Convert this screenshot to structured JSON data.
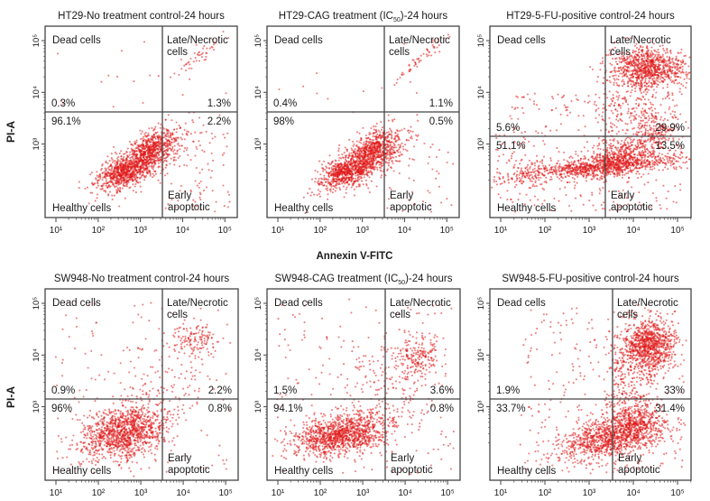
{
  "figure": {
    "y_axis_label": "PI-A",
    "x_axis_label": "Annexin V-FITC",
    "colors": {
      "dots": "#e01818",
      "axes": "#444444",
      "text": "#1a1a1a"
    }
  },
  "chart_data": [
    {
      "type": "scatter",
      "title_pre": "HT29-No treatment control-24 hours",
      "title_sub": "",
      "title_post": "",
      "x_ticks": [
        "10¹",
        "10²",
        "10³",
        "10⁴",
        "10⁵"
      ],
      "y_ticks": [
        "10⁵",
        "10⁴",
        "10³"
      ],
      "scale": "log",
      "xlim": [
        10,
        100000
      ],
      "ylim": [
        10,
        100000
      ],
      "gates": {
        "x": 2500,
        "y": 800
      },
      "quadrant_labels": {
        "upper_left": "Dead cells",
        "upper_right": [
          "Late/Necrotic",
          "cells"
        ],
        "lower_left": "Healthy cells",
        "lower_right": [
          "Early",
          "apoptotic"
        ]
      },
      "percentages": {
        "upper_left": "0.3%",
        "upper_right": "1.3%",
        "lower_left": "96.1%",
        "lower_right": "2.2%"
      }
    },
    {
      "type": "scatter",
      "title_pre": "HT29-CAG treatment (IC",
      "title_sub": "50",
      "title_post": ")-24 hours",
      "x_ticks": [
        "10¹",
        "10²",
        "10³",
        "10⁴",
        "10⁵"
      ],
      "y_ticks": [
        "10⁵",
        "10⁴",
        "10³"
      ],
      "scale": "log",
      "xlim": [
        10,
        100000
      ],
      "ylim": [
        10,
        100000
      ],
      "gates": {
        "x": 2500,
        "y": 800
      },
      "quadrant_labels": {
        "upper_left": "Dead cells",
        "upper_right": [
          "Late/Necrotic",
          "cells"
        ],
        "lower_left": "Healthy cells",
        "lower_right": [
          "Early",
          "apoptotic"
        ]
      },
      "percentages": {
        "upper_left": "0.4%",
        "upper_right": "1.1%",
        "lower_left": "98%",
        "lower_right": "0.5%"
      }
    },
    {
      "type": "scatter",
      "title_pre": "HT29-5-FU-positive control-24 hours",
      "title_sub": "",
      "title_post": "",
      "x_ticks": [
        "10¹",
        "10²",
        "10³",
        "10⁴",
        "10⁵"
      ],
      "y_ticks": [
        "10⁵",
        "10⁴",
        "10³"
      ],
      "scale": "log",
      "xlim": [
        10,
        100000
      ],
      "ylim": [
        10,
        100000
      ],
      "gates": {
        "x": 2500,
        "y": 400
      },
      "quadrant_labels": {
        "upper_left": "Dead cells",
        "upper_right": [
          "Late/Necrotic",
          "cells"
        ],
        "lower_left": "Healthy cells",
        "lower_right": [
          "Early",
          "apoptotic"
        ]
      },
      "percentages": {
        "upper_left": "5.6%",
        "upper_right": "29.9%",
        "lower_left": "51.1%",
        "lower_right": "13.5%"
      }
    },
    {
      "type": "scatter",
      "title_pre": "SW948-No treatment control-24 hours",
      "title_sub": "",
      "title_post": "",
      "x_ticks": [
        "10¹",
        "10²",
        "10³",
        "10⁴",
        "10⁵"
      ],
      "y_ticks": [
        "10⁵",
        "10⁴",
        "10³"
      ],
      "scale": "log",
      "xlim": [
        10,
        100000
      ],
      "ylim": [
        10,
        100000
      ],
      "gates": {
        "x": 2500,
        "y": 700
      },
      "quadrant_labels": {
        "upper_left": "Dead cells",
        "upper_right": [
          "Late/Necrotic",
          "cells"
        ],
        "lower_left": "Healthy cells",
        "lower_right": [
          "Early",
          "apoptotic"
        ]
      },
      "percentages": {
        "upper_left": "0.9%",
        "upper_right": "2.2%",
        "lower_left": "96%",
        "lower_right": "0.8%"
      }
    },
    {
      "type": "scatter",
      "title_pre": "SW948-CAG treatment (IC",
      "title_sub": "50",
      "title_post": ")-24 hours",
      "x_ticks": [
        "10¹",
        "10²",
        "10³",
        "10⁴",
        "10⁵"
      ],
      "y_ticks": [
        "10⁵",
        "10⁴",
        "10³"
      ],
      "scale": "log",
      "xlim": [
        10,
        100000
      ],
      "ylim": [
        10,
        100000
      ],
      "gates": {
        "x": 2500,
        "y": 700
      },
      "quadrant_labels": {
        "upper_left": "Dead cells",
        "upper_right": [
          "Late/Necrotic",
          "cells"
        ],
        "lower_left": "Healthy cells",
        "lower_right": [
          "Early",
          "apoptotic"
        ]
      },
      "percentages": {
        "upper_left": "1.5%",
        "upper_right": "3.6%",
        "lower_left": "94.1%",
        "lower_right": "0.8%"
      }
    },
    {
      "type": "scatter",
      "title_pre": "SW948-5-FU-positive control-24 hours",
      "title_sub": "",
      "title_post": "",
      "x_ticks": [
        "10¹",
        "10²",
        "10³",
        "10⁴",
        "10⁵"
      ],
      "y_ticks": [
        "10⁵",
        "10⁴",
        "10³"
      ],
      "scale": "log",
      "xlim": [
        10,
        100000
      ],
      "ylim": [
        10,
        100000
      ],
      "gates": {
        "x": 2500,
        "y": 700
      },
      "quadrant_labels": {
        "upper_left": "Dead cells",
        "upper_right": [
          "Late/Necrotic",
          "cells"
        ],
        "lower_left": "Healthy cells",
        "lower_right": [
          "Early",
          "apoptotic"
        ]
      },
      "percentages": {
        "upper_left": "1.9%",
        "upper_right": "33%",
        "lower_left": "33.7%",
        "lower_right": "31.4%"
      }
    }
  ]
}
